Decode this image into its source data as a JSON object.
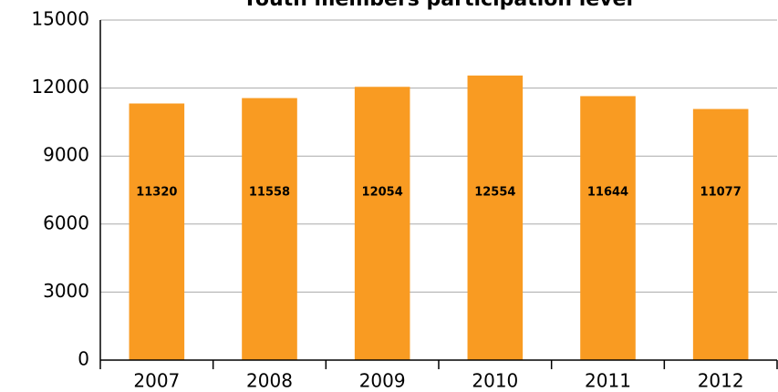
{
  "chart_data": {
    "type": "bar",
    "title": "Youth members participation level",
    "categories": [
      "2007",
      "2008",
      "2009",
      "2010",
      "2011",
      "2012"
    ],
    "values": [
      11320,
      11558,
      12054,
      12554,
      11644,
      11077
    ],
    "color": "#f99b22",
    "ylim": [
      0,
      15000
    ],
    "yticks": [
      0,
      3000,
      6000,
      9000,
      12000,
      15000
    ],
    "grid": true
  }
}
